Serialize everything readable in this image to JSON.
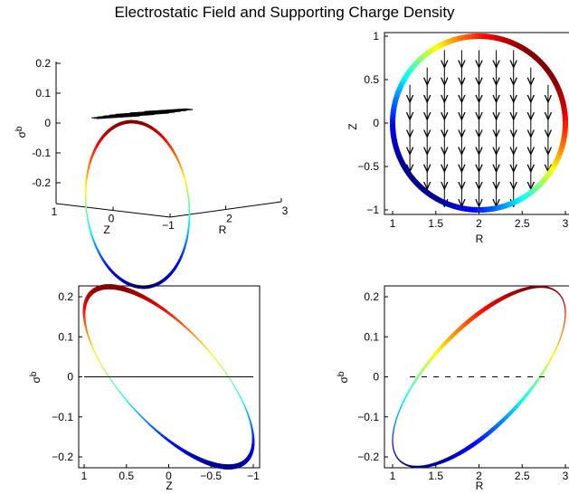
{
  "title": "Electrostatic Field and Supporting Charge Density",
  "colormap": [
    "#00008f",
    "#0000ff",
    "#0080ff",
    "#00ffff",
    "#80ff80",
    "#ffff00",
    "#ff8000",
    "#ff0000",
    "#800000"
  ],
  "chart_data": [
    {
      "id": "panel-3d",
      "type": "line",
      "view": "3d",
      "xlabel": "Z",
      "ylabel": "R",
      "zlabel": "σ_b",
      "z_label_main": "σ",
      "z_label_sub": "b",
      "zlim": [
        -0.25,
        0.25
      ],
      "zticks": [
        -0.2,
        -0.1,
        0,
        0.1,
        0.2
      ],
      "zticklabels": [
        "-0.2",
        "-0.1",
        "0",
        "0.1",
        "0.2"
      ],
      "xticks": [
        1,
        0,
        -1
      ],
      "xticklabels": [
        "1",
        "0",
        "−1"
      ],
      "yticks": [
        2,
        3
      ],
      "yticklabels": [
        "2",
        "3"
      ],
      "series": [
        {
          "kind": "curve",
          "definition": "R = 2 + cos(t), Z = sin(t), sigma_b = 0.225·sin(t + π/4)"
        },
        {
          "kind": "field-arrows",
          "plane": "sigma_b = 0"
        }
      ]
    },
    {
      "id": "panel-field",
      "type": "line",
      "xlabel": "R",
      "ylabel": "Z",
      "xlim": [
        0.9,
        3.05
      ],
      "ylim": [
        -1.05,
        1.05
      ],
      "xticks": [
        1,
        1.5,
        2,
        2.5,
        3
      ],
      "xticklabels": [
        "1",
        "1.5",
        "2",
        "2.5",
        "3"
      ],
      "yticks": [
        -1,
        -0.5,
        0,
        0.5,
        1
      ],
      "yticklabels": [
        "−1",
        "−0.5",
        "0",
        "0.5",
        "1"
      ],
      "arrow_R": [
        1.2,
        1.4,
        1.6,
        1.8,
        2.0,
        2.2,
        2.4,
        2.6,
        2.8
      ],
      "arrow_Z": [
        0.8,
        0.6,
        0.4,
        0.2,
        0.0,
        -0.2,
        -0.4,
        -0.6,
        -0.8
      ],
      "series": [
        {
          "kind": "circle",
          "center": [
            2,
            0
          ],
          "radius": 1
        },
        {
          "kind": "field-arrows",
          "direction": "negative Z"
        }
      ]
    },
    {
      "id": "panel-z-sigma",
      "type": "line",
      "xlabel": "Z",
      "ylabel": "σ_b",
      "y_label_main": "σ",
      "y_label_sub": "b",
      "xlim": [
        1.07,
        -1.07
      ],
      "ylim": [
        -0.235,
        0.235
      ],
      "xticks": [
        1,
        0.5,
        0,
        -0.5,
        -1
      ],
      "xticklabels": [
        "1",
        "0.5",
        "0",
        "−0.5",
        "−1"
      ],
      "yticks": [
        -0.2,
        -0.1,
        0,
        0.1,
        0.2
      ],
      "yticklabels": [
        "−0.2",
        "−0.1",
        "0",
        "0.1",
        "0.2"
      ],
      "series": [
        {
          "kind": "curve",
          "x": "Z",
          "y": "sigma_b"
        },
        {
          "kind": "segment",
          "x": [
            1,
            -1
          ],
          "y": [
            0,
            0
          ],
          "style": "solid"
        }
      ]
    },
    {
      "id": "panel-r-sigma",
      "type": "line",
      "xlabel": "R",
      "ylabel": "σ_b",
      "y_label_main": "σ",
      "y_label_sub": "b",
      "xlim": [
        0.95,
        3.05
      ],
      "ylim": [
        -0.235,
        0.235
      ],
      "xticks": [
        1,
        1.5,
        2,
        2.5,
        3
      ],
      "xticklabels": [
        "1",
        "1.5",
        "2",
        "2.5",
        "3"
      ],
      "yticks": [
        -0.2,
        -0.1,
        0,
        0.1,
        0.2
      ],
      "yticklabels": [
        "−0.2",
        "−0.1",
        "0",
        "0.1",
        "0.2"
      ],
      "series": [
        {
          "kind": "curve",
          "x": "R",
          "y": "sigma_b"
        },
        {
          "kind": "segment",
          "x": [
            1.2,
            2.8
          ],
          "y": [
            0,
            0
          ],
          "style": "dashed"
        }
      ]
    }
  ]
}
